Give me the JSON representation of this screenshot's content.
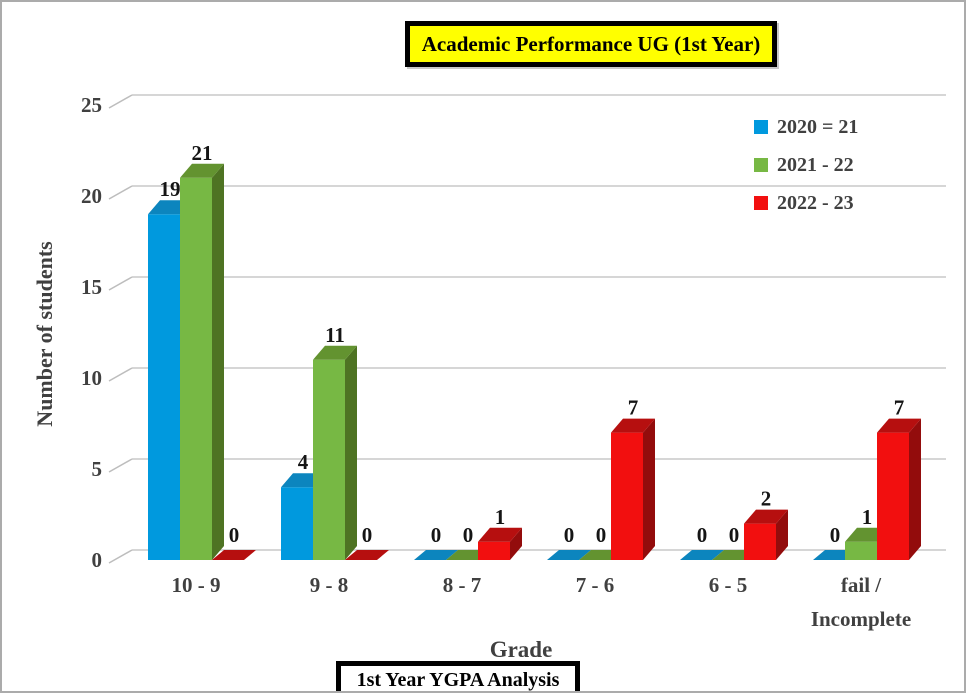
{
  "banners": {
    "title": "Academic Performance UG (1st Year)",
    "footer": "1st Year YGPA Analysis"
  },
  "colors": {
    "frame_border": "#ABABAB",
    "title_banner_bg": "#FFFF00",
    "banner_border": "#000000",
    "gridline": "#C9C9C9",
    "axis_text": "#404040",
    "value_label_text": "#151515"
  },
  "chart_data": {
    "type": "bar",
    "variant": "3d-clustered-column",
    "title": "Academic Performance UG (1st Year)",
    "xlabel": "Grade",
    "ylabel": "Number of students",
    "categories": [
      "10 - 9",
      "9 - 8",
      "8 - 7",
      "7 - 6",
      "6 - 5",
      "fail /\nIncomplete"
    ],
    "series": [
      {
        "name": "2020 = 21",
        "values": [
          19,
          4,
          0,
          0,
          0,
          0
        ],
        "color": "#0099DE",
        "color_side": "#0A6FA3",
        "color_top": "#0C85BE"
      },
      {
        "name": "2021 - 22",
        "values": [
          21,
          11,
          0,
          0,
          0,
          1
        ],
        "color": "#77B844",
        "color_side": "#4E7323",
        "color_top": "#639330"
      },
      {
        "name": "2022 - 23",
        "values": [
          0,
          0,
          1,
          7,
          2,
          7
        ],
        "color": "#F20F0F",
        "color_side": "#930C0C",
        "color_top": "#B60F0F"
      }
    ],
    "yticks": [
      0,
      5,
      10,
      15,
      20,
      25
    ],
    "ylim": [
      0,
      25
    ],
    "grid": true,
    "legend_position": "top-right"
  }
}
